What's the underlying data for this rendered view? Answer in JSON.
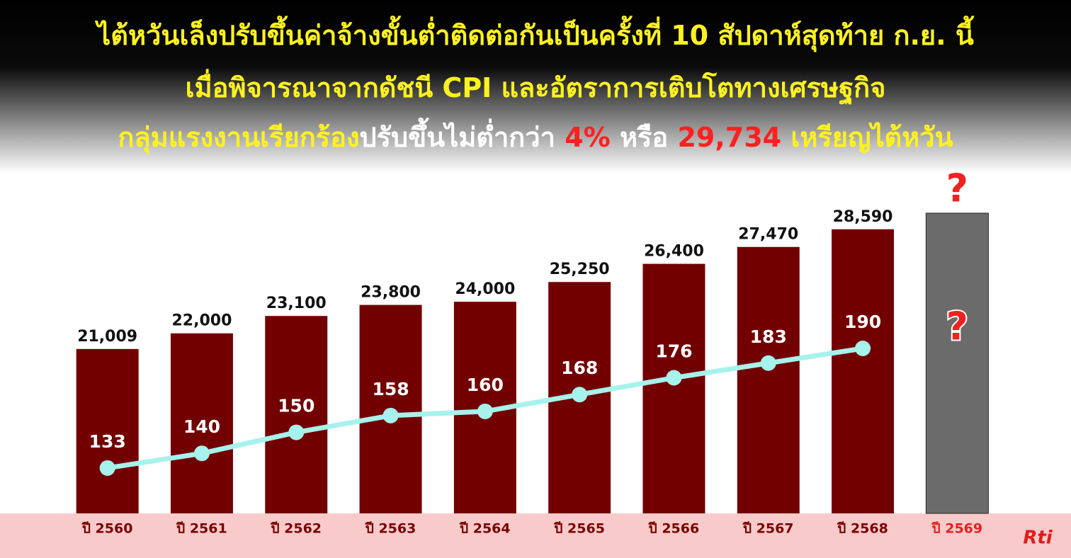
{
  "chart_data": {
    "type": "bar",
    "title_lines": [
      [
        {
          "text": "ไต้หวันเล็งปรับขึ้นค่าจ้างขั้นต่ำติดต่อกันเป็นครั้งที่ 10 สัปดาห์สุดท้าย ก.ย. นี้",
          "color": "#fff21f"
        }
      ],
      [
        {
          "text": "เมื่อพิจารณาจากดัชนี CPI และอัตราการเติบโตทางเศรษฐกิจ",
          "color": "#fff21f"
        }
      ],
      [
        {
          "text": "กลุ่มแรงงานเรียกร้อง",
          "color": "#fff21f"
        },
        {
          "text": "ปรับขึ้นไม่ต่ำกว่า ",
          "color": "#ffffff"
        },
        {
          "text": "4%",
          "color": "#ff2020"
        },
        {
          "text": " หรือ ",
          "color": "#ffffff"
        },
        {
          "text": "29,734",
          "color": "#ff2020"
        },
        {
          "text": " เหรียญไต้หวัน",
          "color": "#fff21f"
        }
      ]
    ],
    "categories": [
      "ปี 2560",
      "ปี 2561",
      "ปี 2562",
      "ปี 2563",
      "ปี 2564",
      "ปี 2565",
      "ปี 2566",
      "ปี 2567",
      "ปี 2568",
      "ปี 2569"
    ],
    "category_colors": [
      "#7a0000",
      "#7a0000",
      "#7a0000",
      "#7a0000",
      "#7a0000",
      "#7a0000",
      "#7a0000",
      "#7a0000",
      "#7a0000",
      "#e82020"
    ],
    "series": [
      {
        "type": "bar",
        "color": "#720000",
        "values": [
          21009,
          22000,
          23100,
          23800,
          24000,
          25250,
          26400,
          27470,
          28590,
          null
        ],
        "value_labels": [
          "21,009",
          "22,000",
          "23,100",
          "23,800",
          "24,000",
          "25,250",
          "26,400",
          "27,470",
          "28,590",
          null
        ]
      },
      {
        "type": "line",
        "axis": "y2",
        "color": "#a6f2ec",
        "values": [
          133,
          140,
          150,
          158,
          160,
          168,
          176,
          183,
          190,
          null
        ]
      }
    ],
    "placeholder": {
      "label": "?",
      "color": "#6b6b6b",
      "label_color": "#ee2222"
    },
    "ylim": [
      10600,
      31000
    ],
    "y2lim": [
      111.4,
      264.9
    ],
    "logo": "Rti"
  }
}
